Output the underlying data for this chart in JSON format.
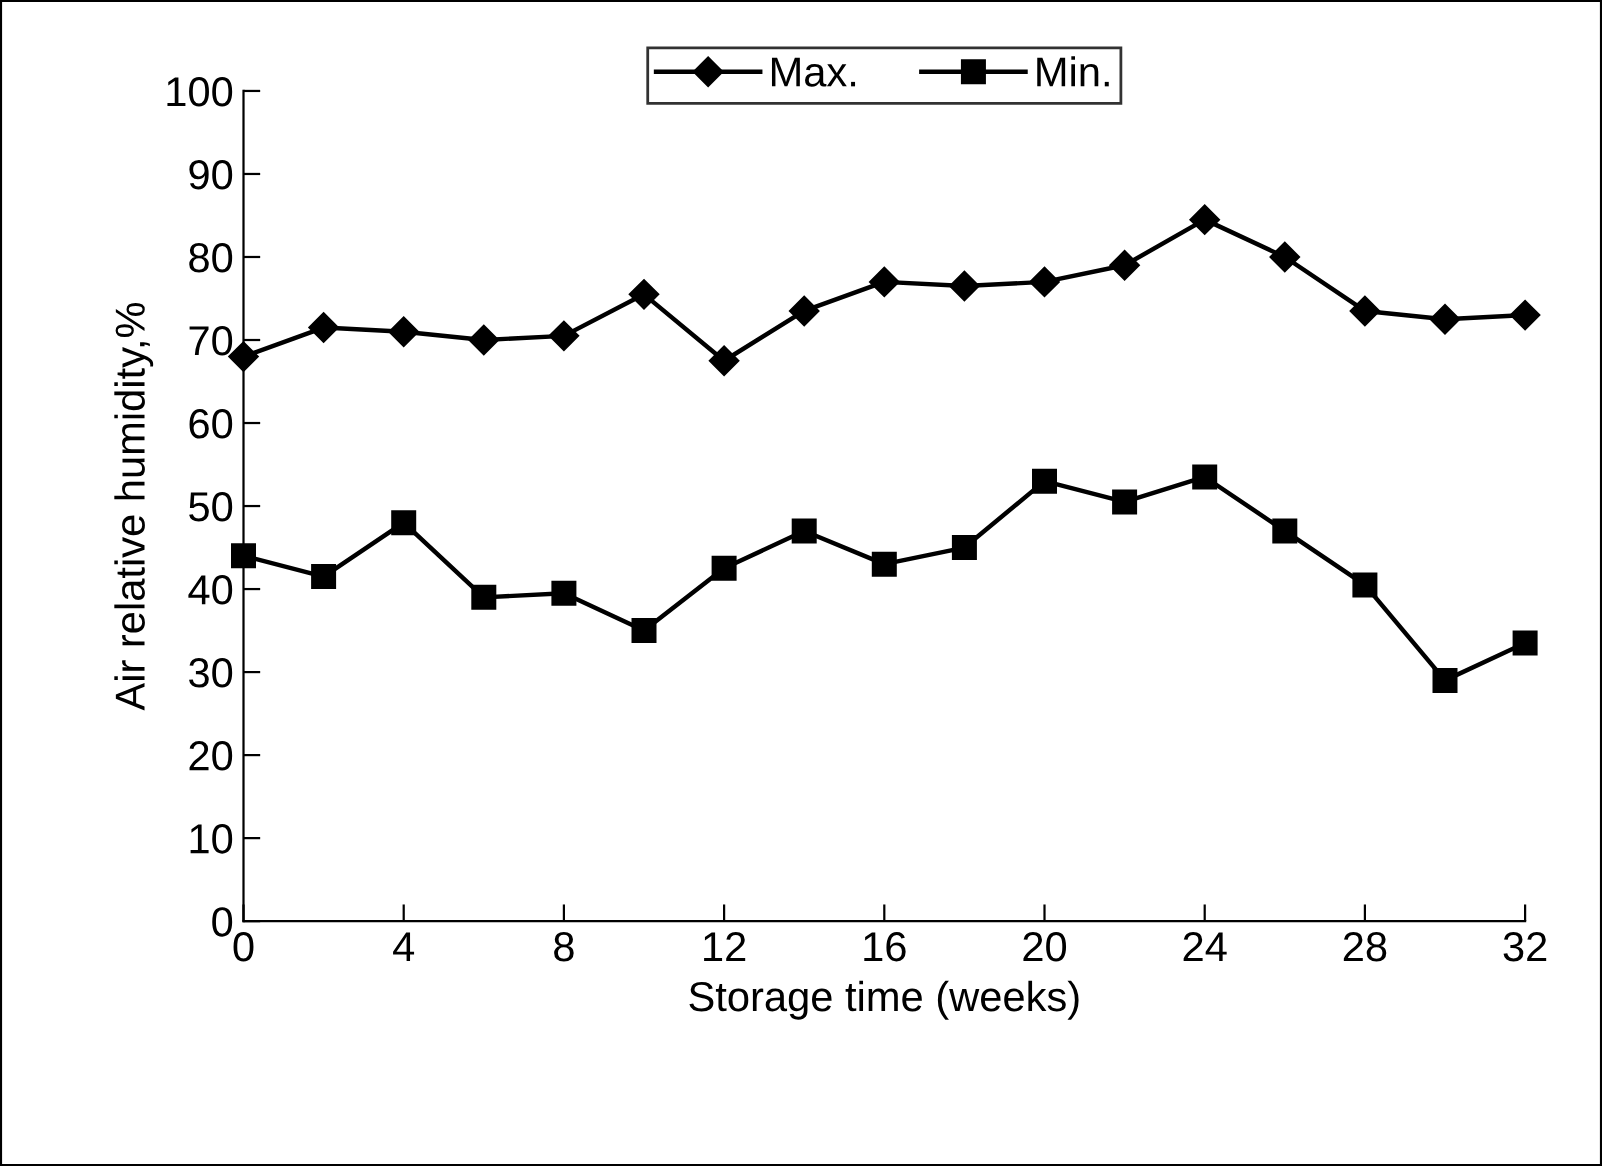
{
  "chart_data": {
    "type": "line",
    "xlabel": "Storage time (weeks)",
    "ylabel": "Air relative humidity,%",
    "x": [
      0,
      2,
      4,
      6,
      8,
      10,
      12,
      14,
      16,
      18,
      20,
      22,
      24,
      26,
      28,
      30,
      32
    ],
    "series": [
      {
        "name": "Max.",
        "color": "#000000",
        "marker": "diamond",
        "values": [
          68,
          71.5,
          71,
          70,
          70.5,
          75.5,
          67.5,
          73.5,
          77,
          76.5,
          77,
          79,
          84.5,
          80,
          73.5,
          72.5,
          73
        ]
      },
      {
        "name": "Min.",
        "color": "#000000",
        "marker": "square",
        "values": [
          44,
          41.5,
          48,
          39,
          39.5,
          35,
          42.5,
          47,
          43,
          45,
          53,
          50.5,
          53.5,
          47,
          40.5,
          29,
          33.5
        ]
      }
    ],
    "xlim": [
      0,
      32
    ],
    "xticks": [
      0,
      4,
      8,
      12,
      16,
      20,
      24,
      28,
      32
    ],
    "ylim": [
      0,
      100
    ],
    "yticks": [
      0,
      10,
      20,
      30,
      40,
      50,
      60,
      70,
      80,
      90,
      100
    ],
    "grid": false,
    "legend": "top",
    "line_style": "solid"
  }
}
